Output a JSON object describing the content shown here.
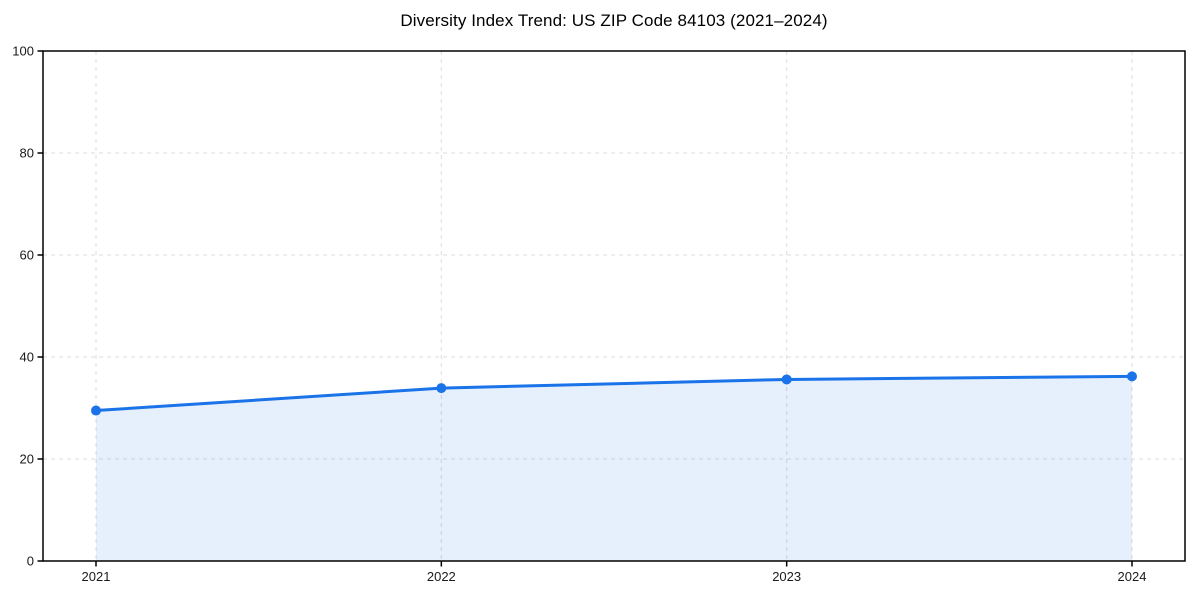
{
  "chart_data": {
    "type": "area",
    "title": "Diversity Index Trend: US ZIP Code 84103 (2021–2024)",
    "categories": [
      "2021",
      "2022",
      "2023",
      "2024"
    ],
    "series": [
      {
        "name": "Diversity Index",
        "values": [
          29.5,
          33.9,
          35.6,
          36.2
        ]
      }
    ],
    "xlabel": "",
    "ylabel": "",
    "ylim": [
      0,
      100
    ],
    "yticks": [
      0,
      20,
      40,
      60,
      80,
      100
    ],
    "grid": true,
    "grid_style": "dashed",
    "legend": "none",
    "marker": "circle",
    "colors": {
      "line": "#1a73e8",
      "fill": "rgba(26,115,232,0.11)",
      "grid": "#dcdcdc",
      "axis": "#000000",
      "tick_label": "#1a1a1a",
      "background": "#ffffff"
    }
  }
}
